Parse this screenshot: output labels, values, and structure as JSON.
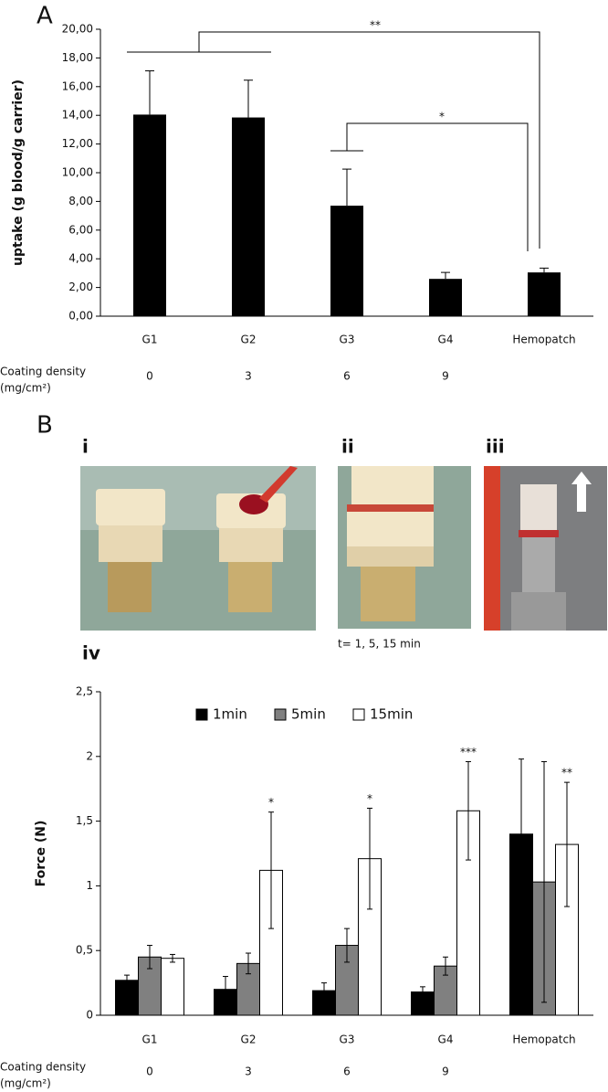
{
  "panel_labels": {
    "a": "A",
    "b": "B",
    "i": "i",
    "ii": "ii",
    "iii": "iii",
    "iv": "iv"
  },
  "photo_caption": "t= 1, 5, 15 min",
  "chart_data": [
    {
      "type": "bar",
      "ylabel": "uptake (g blood/g carrier)",
      "categories": [
        "G1",
        "G2",
        "G3",
        "G4",
        "Hemopatch"
      ],
      "values": [
        14.05,
        13.85,
        7.7,
        2.6,
        3.05
      ],
      "errors": [
        3.05,
        2.6,
        2.55,
        0.45,
        0.3
      ],
      "color": "#000000",
      "ylim": [
        0,
        20
      ],
      "yticks": [
        {
          "value": 0,
          "label": "0,00"
        },
        {
          "value": 2,
          "label": "2,00"
        },
        {
          "value": 4,
          "label": "4,00"
        },
        {
          "value": 6,
          "label": "6,00"
        },
        {
          "value": 8,
          "label": "8,00"
        },
        {
          "value": 10,
          "label": "10,00"
        },
        {
          "value": 12,
          "label": "12,00"
        },
        {
          "value": 14,
          "label": "14,00"
        },
        {
          "value": 16,
          "label": "16,00"
        },
        {
          "value": 18,
          "label": "18,00"
        },
        {
          "value": 20,
          "label": "20,00"
        }
      ],
      "annotations": [
        "**",
        "*"
      ],
      "coating_density": {
        "label": "Coating density",
        "unit": "(mg/cm²)",
        "values": [
          "0",
          "3",
          "6",
          "9"
        ]
      }
    },
    {
      "type": "grouped_bar",
      "ylabel": "Force (N)",
      "categories": [
        "G1",
        "G2",
        "G3",
        "G4",
        "Hemopatch"
      ],
      "series": [
        {
          "name": "1min",
          "color": "#000000",
          "values": [
            0.27,
            0.2,
            0.19,
            0.18,
            1.4
          ],
          "errors": [
            0.04,
            0.1,
            0.06,
            0.04,
            0.58
          ]
        },
        {
          "name": "5min",
          "color": "#808080",
          "values": [
            0.45,
            0.4,
            0.54,
            0.38,
            1.03
          ],
          "errors": [
            0.09,
            0.08,
            0.13,
            0.07,
            0.93
          ]
        },
        {
          "name": "15min",
          "color": "#ffffff",
          "values": [
            0.44,
            1.12,
            1.21,
            1.58,
            1.32
          ],
          "errors": [
            0.03,
            0.45,
            0.39,
            0.38,
            0.48
          ]
        }
      ],
      "ylim": [
        0,
        2.5
      ],
      "yticks": [
        0,
        {
          "value": 0.5,
          "label": "0,5"
        },
        1,
        {
          "value": 1.5,
          "label": "1,5"
        },
        2,
        {
          "value": 2.5,
          "label": "2,5"
        }
      ],
      "annotations": [
        "*",
        "*",
        "***",
        "**"
      ],
      "legend": "top",
      "coating_density": {
        "label": "Coating density",
        "unit": "(mg/cm²)",
        "values": [
          "0",
          "3",
          "6",
          "9"
        ]
      }
    }
  ]
}
